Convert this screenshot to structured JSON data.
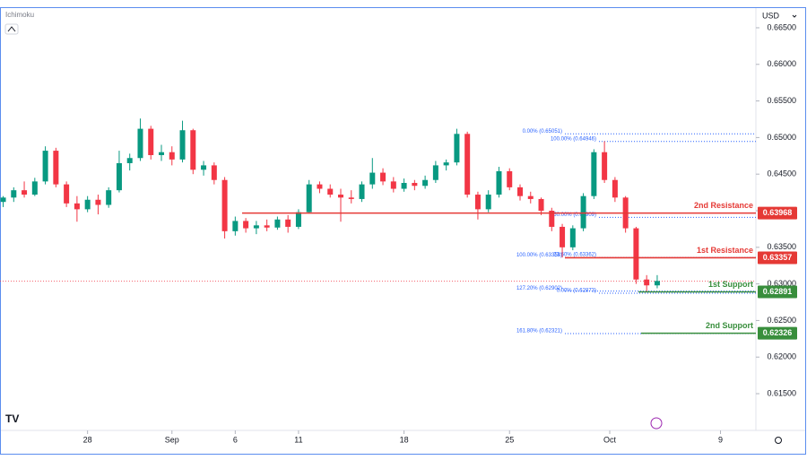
{
  "chart_data": {
    "type": "candlestick",
    "indicator": "Ichimoku",
    "currency": "USD",
    "ylim": [
      0.60998,
      0.66757
    ],
    "yticks": [
      {
        "value": 0.615,
        "label": "0.61500"
      },
      {
        "value": 0.62,
        "label": "0.62000"
      },
      {
        "value": 0.625,
        "label": "0.62500"
      },
      {
        "value": 0.63,
        "label": "0.63000"
      },
      {
        "value": 0.635,
        "label": "0.63500"
      },
      {
        "value": 0.64,
        "label": "0.64000"
      },
      {
        "value": 0.645,
        "label": "0.64500"
      },
      {
        "value": 0.65,
        "label": "0.65000"
      },
      {
        "value": 0.655,
        "label": "0.65500"
      },
      {
        "value": 0.66,
        "label": "0.66000"
      },
      {
        "value": 0.665,
        "label": "0.66500"
      }
    ],
    "xlim": [
      -0.3,
      71.1
    ],
    "xticks": [
      {
        "value": 8,
        "label": "28"
      },
      {
        "value": 16,
        "label": "Sep"
      },
      {
        "value": 22,
        "label": "6"
      },
      {
        "value": 28,
        "label": "11"
      },
      {
        "value": 38,
        "label": "18"
      },
      {
        "value": 48,
        "label": "25"
      },
      {
        "value": 57.5,
        "label": "Oct"
      },
      {
        "value": 68,
        "label": "9"
      }
    ],
    "up_color": "#089981",
    "down_color": "#f23645",
    "candles": [
      [
        0.6412,
        0.642,
        0.6405,
        0.6418
      ],
      [
        0.6418,
        0.6432,
        0.6412,
        0.6428
      ],
      [
        0.6428,
        0.644,
        0.6418,
        0.6422
      ],
      [
        0.6422,
        0.6445,
        0.642,
        0.644
      ],
      [
        0.644,
        0.6488,
        0.6436,
        0.6482
      ],
      [
        0.6482,
        0.6486,
        0.6432,
        0.6436
      ],
      [
        0.6436,
        0.644,
        0.6405,
        0.641
      ],
      [
        0.641,
        0.642,
        0.6385,
        0.6402
      ],
      [
        0.6402,
        0.642,
        0.6398,
        0.6415
      ],
      [
        0.6415,
        0.6422,
        0.6395,
        0.6408
      ],
      [
        0.6408,
        0.6432,
        0.6404,
        0.6428
      ],
      [
        0.6428,
        0.6482,
        0.6425,
        0.6465
      ],
      [
        0.6465,
        0.6478,
        0.6455,
        0.6472
      ],
      [
        0.6472,
        0.6526,
        0.6468,
        0.6512
      ],
      [
        0.6512,
        0.6516,
        0.647,
        0.6476
      ],
      [
        0.6476,
        0.649,
        0.6468,
        0.648
      ],
      [
        0.648,
        0.6488,
        0.6462,
        0.647
      ],
      [
        0.647,
        0.6523,
        0.6466,
        0.651
      ],
      [
        0.651,
        0.6512,
        0.645,
        0.6456
      ],
      [
        0.6456,
        0.6468,
        0.6448,
        0.6462
      ],
      [
        0.6462,
        0.6466,
        0.6436,
        0.6442
      ],
      [
        0.6442,
        0.6446,
        0.6362,
        0.6372
      ],
      [
        0.6372,
        0.6392,
        0.6366,
        0.6386
      ],
      [
        0.6386,
        0.639,
        0.637,
        0.6376
      ],
      [
        0.6376,
        0.6386,
        0.6368,
        0.638
      ],
      [
        0.638,
        0.6388,
        0.6372,
        0.6377
      ],
      [
        0.6377,
        0.6392,
        0.6374,
        0.6388
      ],
      [
        0.6388,
        0.6394,
        0.637,
        0.6378
      ],
      [
        0.6378,
        0.6402,
        0.6375,
        0.6398
      ],
      [
        0.6398,
        0.6442,
        0.6396,
        0.6436
      ],
      [
        0.6436,
        0.644,
        0.6424,
        0.643
      ],
      [
        0.643,
        0.6436,
        0.6418,
        0.6422
      ],
      [
        0.6422,
        0.643,
        0.6385,
        0.6418
      ],
      [
        0.6418,
        0.6428,
        0.641,
        0.6416
      ],
      [
        0.6416,
        0.644,
        0.6412,
        0.6436
      ],
      [
        0.6436,
        0.6472,
        0.643,
        0.6452
      ],
      [
        0.6452,
        0.6458,
        0.6435,
        0.644
      ],
      [
        0.644,
        0.6446,
        0.6425,
        0.643
      ],
      [
        0.643,
        0.6444,
        0.6426,
        0.6438
      ],
      [
        0.6438,
        0.6442,
        0.6428,
        0.6434
      ],
      [
        0.6434,
        0.6448,
        0.643,
        0.6442
      ],
      [
        0.6442,
        0.6468,
        0.6438,
        0.6462
      ],
      [
        0.6462,
        0.647,
        0.6455,
        0.6466
      ],
      [
        0.6466,
        0.6512,
        0.6462,
        0.6505
      ],
      [
        0.6505,
        0.6508,
        0.6418,
        0.6422
      ],
      [
        0.6422,
        0.6426,
        0.6388,
        0.6402
      ],
      [
        0.6402,
        0.6428,
        0.6398,
        0.6422
      ],
      [
        0.6422,
        0.646,
        0.6418,
        0.6454
      ],
      [
        0.6454,
        0.6458,
        0.6428,
        0.6432
      ],
      [
        0.6432,
        0.6436,
        0.6414,
        0.642
      ],
      [
        0.642,
        0.6426,
        0.641,
        0.6416
      ],
      [
        0.6416,
        0.6418,
        0.6394,
        0.64
      ],
      [
        0.64,
        0.6404,
        0.6372,
        0.6378
      ],
      [
        0.6378,
        0.6382,
        0.6336,
        0.635
      ],
      [
        0.635,
        0.638,
        0.6346,
        0.6376
      ],
      [
        0.6376,
        0.6424,
        0.6372,
        0.642
      ],
      [
        0.642,
        0.6484,
        0.6416,
        0.648
      ],
      [
        0.648,
        0.6495,
        0.6438,
        0.6442
      ],
      [
        0.6442,
        0.6446,
        0.6412,
        0.6418
      ],
      [
        0.6418,
        0.642,
        0.637,
        0.6376
      ],
      [
        0.6376,
        0.6378,
        0.63,
        0.6306
      ],
      [
        0.6306,
        0.6312,
        0.629,
        0.6298
      ],
      [
        0.6298,
        0.6312,
        0.6294,
        0.6304
      ]
    ],
    "levels": [
      {
        "label": "2nd Resistance",
        "value": 0.63968,
        "color": "#e53935"
      },
      {
        "label": "1st Resistance",
        "value": 0.63357,
        "color": "#e53935"
      },
      {
        "label": "1st Support",
        "value": 0.62891,
        "color": "#388e3c"
      },
      {
        "label": "2nd Support",
        "value": 0.62326,
        "color": "#388e3c"
      }
    ],
    "fib_color": "#2962ff",
    "annotations": [
      {
        "text": "0.00% (0.65051)",
        "value": 0.65051
      },
      {
        "text": "100.00% (0.64946)",
        "value": 0.64946
      },
      {
        "text": "100.00% (0.63358)",
        "value": 0.63358
      },
      {
        "text": "127.20% (0.62902)",
        "value": 0.62902
      },
      {
        "text": "161.80% (0.62321)",
        "value": 0.62321
      },
      {
        "text": "50.00% (0.63909)",
        "value": 0.63909
      },
      {
        "text": "23.60% (0.63362)",
        "value": 0.63362
      },
      {
        "text": "0.00% (0.62873)",
        "value": 0.62873
      }
    ]
  }
}
